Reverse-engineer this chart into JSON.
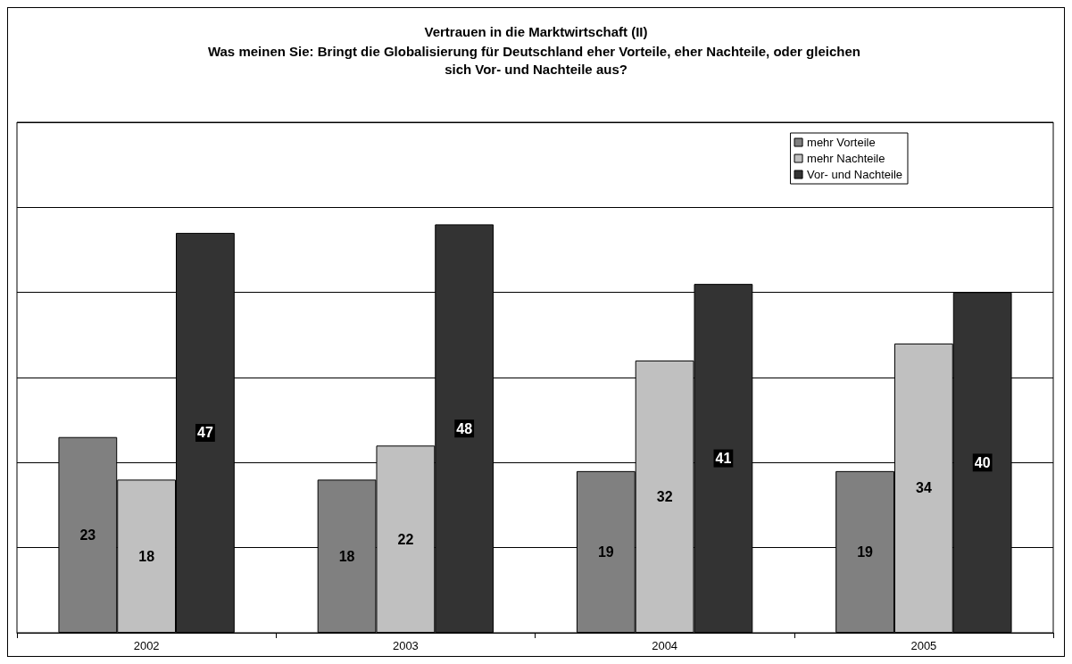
{
  "chart_data": {
    "type": "bar",
    "title": "Vertrauen in die Marktwirtschaft (II)",
    "subtitle": "Was meinen Sie: Bringt die Globalisierung für Deutschland eher Vorteile, eher Nachteile, oder gleichen sich Vor- und Nachteile aus?",
    "categories": [
      "2002",
      "2003",
      "2004",
      "2005"
    ],
    "series": [
      {
        "name": "mehr Vorteile",
        "color": "#808080",
        "values": [
          23,
          18,
          19,
          19
        ]
      },
      {
        "name": "mehr Nachteile",
        "color": "#c0c0c0",
        "values": [
          18,
          22,
          32,
          34
        ]
      },
      {
        "name": "Vor- und Nachteile",
        "color": "#333333",
        "values": [
          47,
          48,
          41,
          40
        ]
      }
    ],
    "ylim": [
      0,
      60
    ],
    "yticks": [
      {
        "value": 0,
        "label": null
      },
      {
        "value": 10,
        "label": null
      },
      {
        "value": 20,
        "label": null
      },
      {
        "value": 30,
        "label": null
      },
      {
        "value": 40,
        "label": null
      },
      {
        "value": 50,
        "label": null
      },
      {
        "value": 60,
        "label": null
      }
    ],
    "tick_labels": "x",
    "grid": "y",
    "legend": "top right",
    "data_labels": true
  }
}
